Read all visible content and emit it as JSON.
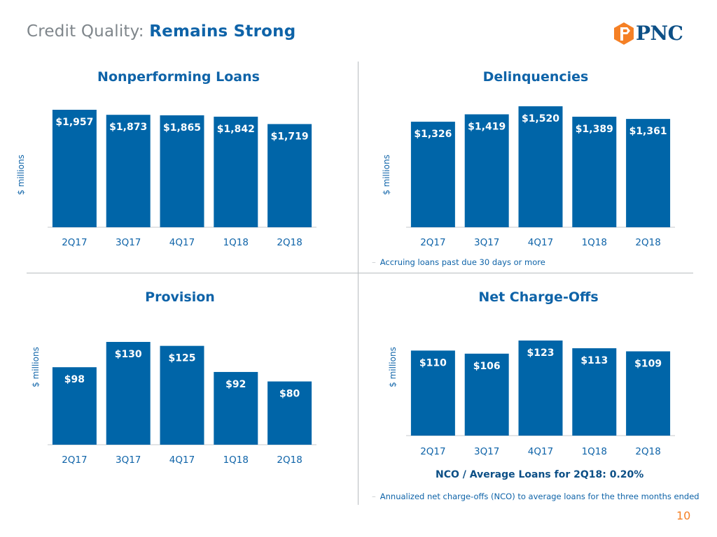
{
  "header": {
    "title_prefix": "Credit Quality: ",
    "title_accent": "Remains Strong",
    "logo_text": "PNC"
  },
  "colors": {
    "bar": "#0065a8",
    "title_accent": "#0e63a8",
    "logo_orange": "#f58025",
    "logo_navy": "#0c4f86",
    "page_number": "#f58025"
  },
  "chart_data": [
    {
      "type": "bar",
      "title": "Nonperforming Loans",
      "ylabel": "$ millions",
      "categories": [
        "2Q17",
        "3Q17",
        "4Q17",
        "1Q18",
        "2Q18"
      ],
      "values": [
        1957,
        1873,
        1865,
        1842,
        1719
      ],
      "labels": [
        "$1,957",
        "$1,873",
        "$1,865",
        "$1,842",
        "$1,719"
      ],
      "ylim": [
        0,
        1957
      ]
    },
    {
      "type": "bar",
      "title": "Delinquencies",
      "ylabel": "$ millions",
      "categories": [
        "2Q17",
        "3Q17",
        "4Q17",
        "1Q18",
        "2Q18"
      ],
      "values": [
        1326,
        1419,
        1520,
        1389,
        1361
      ],
      "labels": [
        "$1,326",
        "$1,419",
        "$1,520",
        "$1,389",
        "$1,361"
      ],
      "ylim": [
        0,
        1520
      ]
    },
    {
      "type": "bar",
      "title": "Provision",
      "ylabel": "$ millions",
      "categories": [
        "2Q17",
        "3Q17",
        "4Q17",
        "1Q18",
        "2Q18"
      ],
      "values": [
        98,
        130,
        125,
        92,
        80
      ],
      "labels": [
        "$98",
        "$130",
        "$125",
        "$92",
        "$80"
      ],
      "ylim": [
        0,
        130
      ]
    },
    {
      "type": "bar",
      "title": "Net Charge-Offs",
      "ylabel": "$ millions",
      "categories": [
        "2Q17",
        "3Q17",
        "4Q17",
        "1Q18",
        "2Q18"
      ],
      "values": [
        110,
        106,
        123,
        113,
        109
      ],
      "labels": [
        "$110",
        "$106",
        "$123",
        "$113",
        "$109"
      ],
      "ylim": [
        0,
        123
      ]
    }
  ],
  "footnotes": {
    "delinquencies": "Accruing loans past due 30 days or more",
    "nco": "Annualized net charge-offs (NCO) to average loans for the three months ended"
  },
  "nco_ratio_text": "NCO / Average Loans for 2Q18: 0.20%",
  "page_number": "10"
}
